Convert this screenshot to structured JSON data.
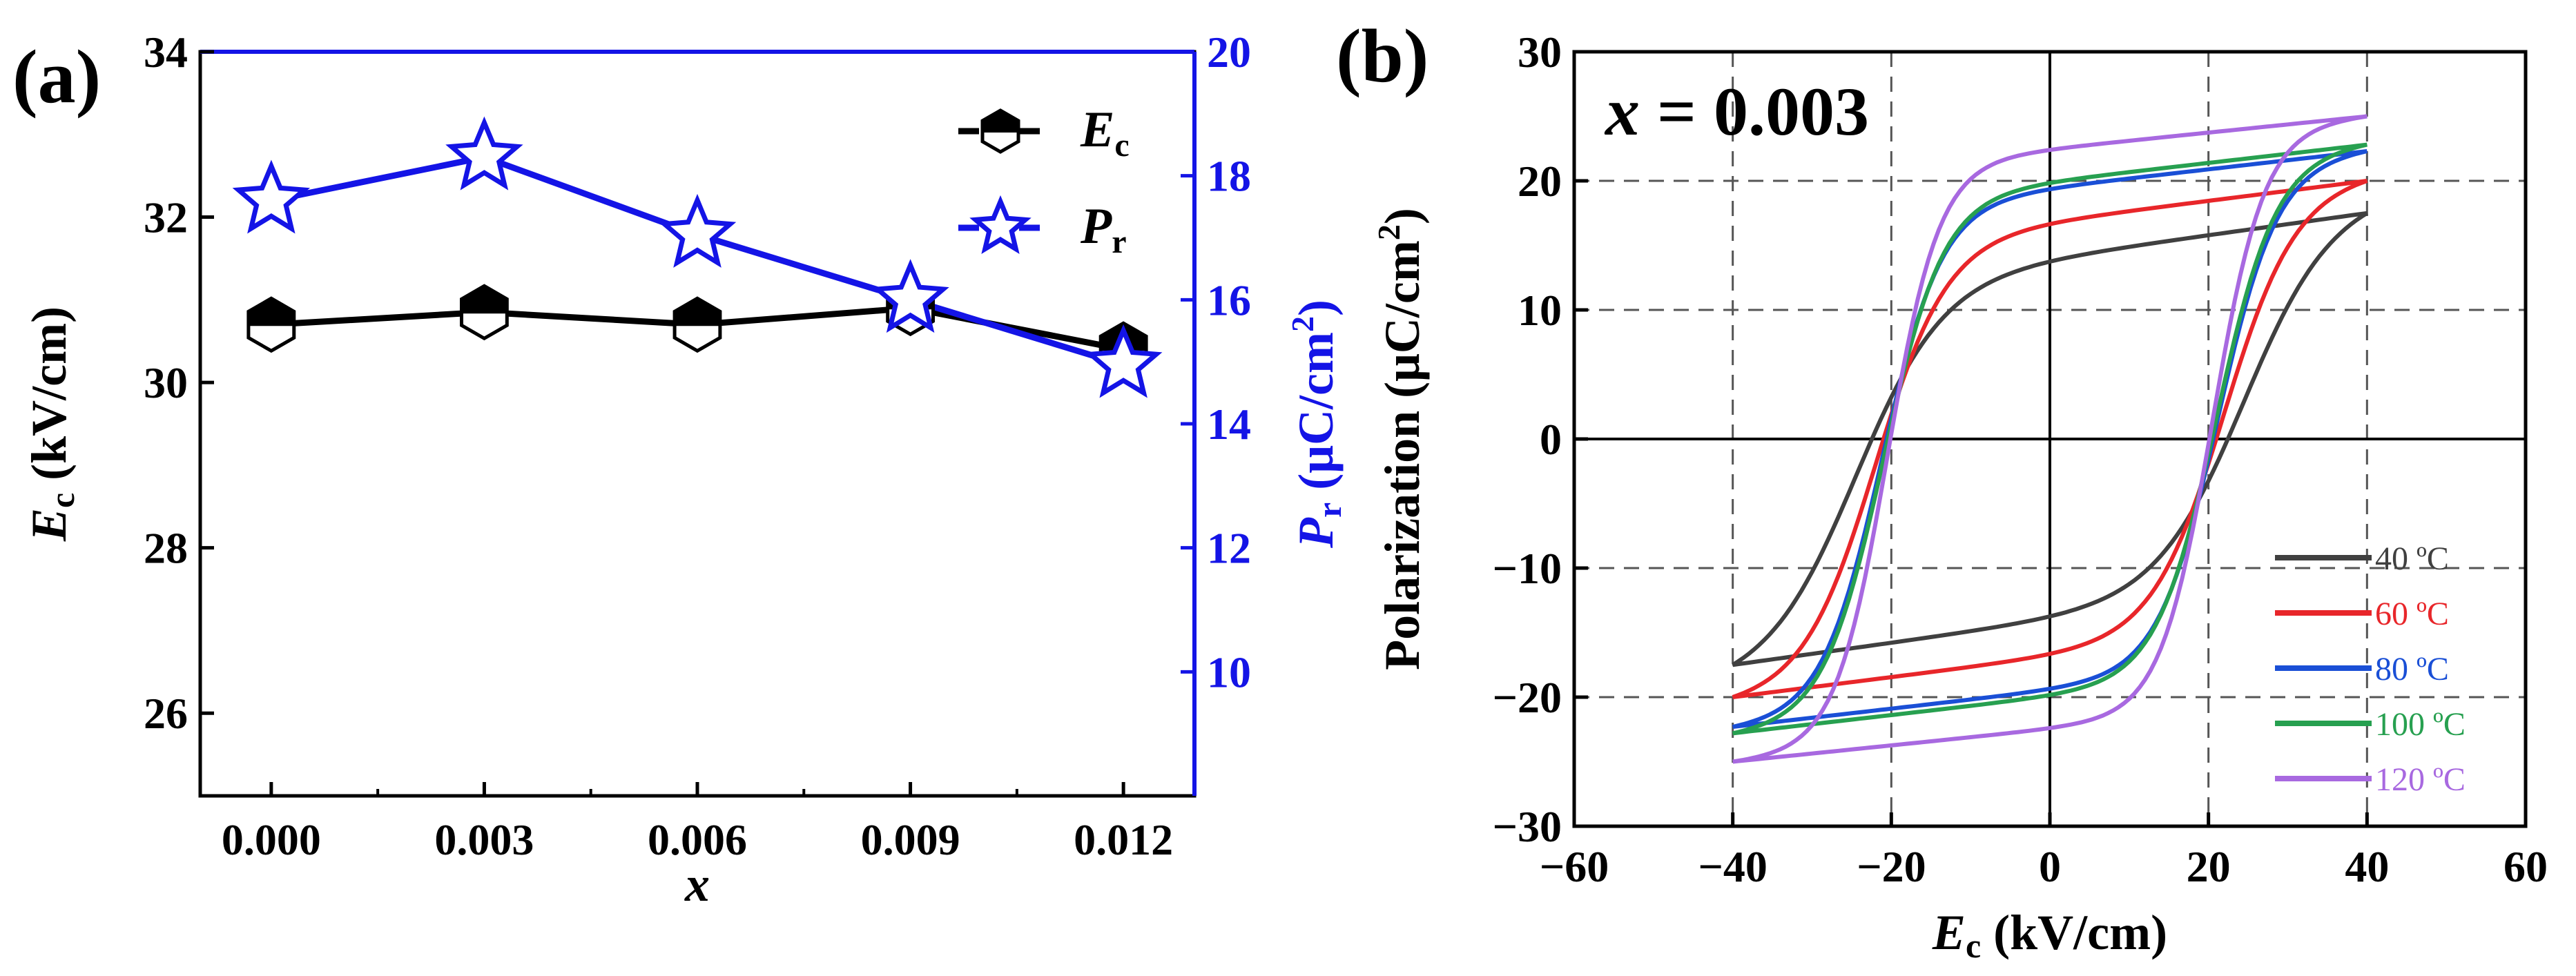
{
  "chart_data": [
    {
      "panel": "(a)",
      "type": "line",
      "x": [
        0.0,
        0.003,
        0.006,
        0.009,
        0.012
      ],
      "x_tick_labels": [
        "0.000",
        "0.003",
        "0.006",
        "0.009",
        "0.012"
      ],
      "xlabel": "x",
      "xlim": [
        -0.001,
        0.013
      ],
      "ylabel_left": {
        "main": "E",
        "sub": "c",
        "rest": " (kV/cm)"
      },
      "ylabel_right": {
        "main": "P",
        "sub": "r",
        "rest": " (μC/cm",
        "sup": "2",
        "end": ")"
      },
      "ylim_left": [
        25,
        34
      ],
      "ylim_right": [
        8,
        20
      ],
      "yticks_left": [
        "26",
        "28",
        "30",
        "32",
        "34"
      ],
      "yticks_right": [
        "10",
        "12",
        "14",
        "16",
        "18",
        "20"
      ],
      "series": [
        {
          "name": "Ec",
          "label_main": "E",
          "label_sub": "c",
          "axis": "left",
          "color": "#000000",
          "marker": "half-filled hexagon",
          "values": [
            30.7,
            30.85,
            30.7,
            30.9,
            30.4
          ]
        },
        {
          "name": "Pr",
          "label_main": "P",
          "label_sub": "r",
          "axis": "right",
          "color": "#1414e6",
          "marker": "open star",
          "values": [
            17.6,
            18.3,
            17.05,
            16.0,
            14.95
          ]
        }
      ]
    },
    {
      "panel": "(b)",
      "type": "line",
      "annotation": {
        "var": "x",
        "rest": " = 0.003"
      },
      "xlabel": {
        "main": "E",
        "sub": "c",
        "rest": " (kV/cm)"
      },
      "ylabel": {
        "main": "Polarization (μC/cm",
        "sup": "2",
        "end": ")"
      },
      "xlim": [
        -60,
        60
      ],
      "ylim": [
        -30,
        30
      ],
      "xticks": [
        "−60",
        "−40",
        "−20",
        "0",
        "20",
        "40",
        "60"
      ],
      "yticks": [
        "−30",
        "−20",
        "−10",
        "0",
        "10",
        "20",
        "30"
      ],
      "grid": "dashed at ±40, ±20 kV/cm and ±20, ±10 μC/cm2",
      "legend_position": "lower-right",
      "series": [
        {
          "name": "40 ºC",
          "color": "#404040",
          "Pmax": 17.5,
          "Pr": 13.5,
          "Ec": 24.5,
          "slope": 0.1,
          "branch_width": 11.0
        },
        {
          "name": "60 ºC",
          "color": "#e8262a",
          "Pmax": 20.0,
          "Pr": 15.5,
          "Ec": 22.0,
          "slope": 0.09,
          "branch_width": 9.0
        },
        {
          "name": "80 ºC",
          "color": "#1a4fd6",
          "Pmax": 22.3,
          "Pr": 17.5,
          "Ec": 21.2,
          "slope": 0.08,
          "branch_width": 7.5
        },
        {
          "name": "100 ºC",
          "color": "#27a050",
          "Pmax": 22.8,
          "Pr": 17.8,
          "Ec": 21.0,
          "slope": 0.08,
          "branch_width": 7.5
        },
        {
          "name": "120 ºC",
          "color": "#a869e0",
          "Pmax": 25.0,
          "Pr": 19.5,
          "Ec": 20.5,
          "slope": 0.07,
          "branch_width": 6.5
        }
      ]
    }
  ]
}
